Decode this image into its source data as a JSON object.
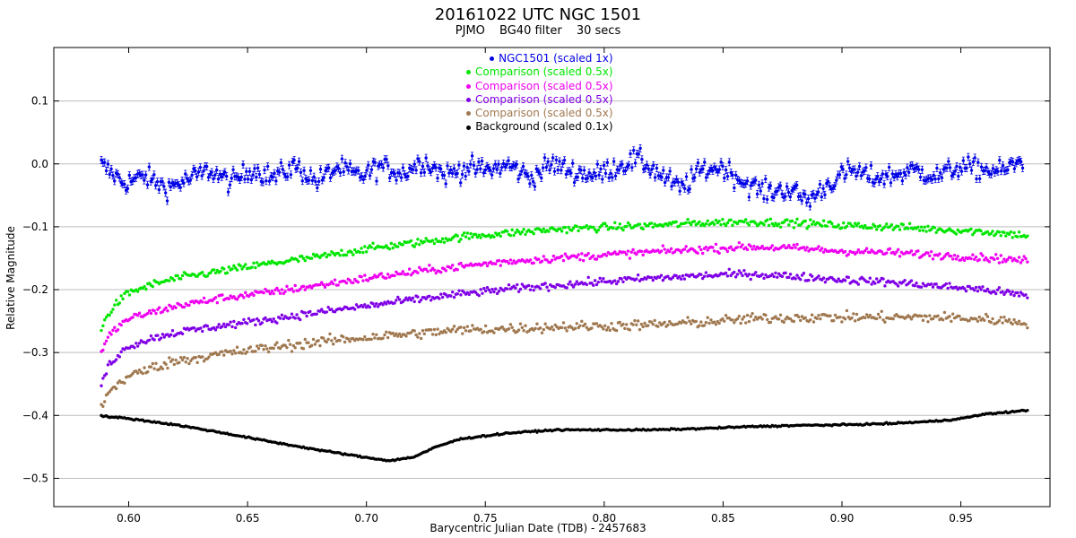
{
  "chart_data": {
    "type": "scatter",
    "title": "20161022 UTC   NGC 1501",
    "subtitle_parts": [
      "PJMO",
      "BG40 filter",
      "30 secs"
    ],
    "xlabel": "Barycentric Julian Date (TDB) - 2457683",
    "ylabel": "Relative Magnitude",
    "xlim": [
      0.5685,
      0.9875
    ],
    "ylim": [
      -0.545,
      0.185
    ],
    "x_ticks": [
      0.6,
      0.65,
      0.7,
      0.75,
      0.8,
      0.85,
      0.9,
      0.95
    ],
    "x_tick_labels": [
      "0.60",
      "0.65",
      "0.70",
      "0.75",
      "0.80",
      "0.85",
      "0.90",
      "0.95"
    ],
    "y_ticks": [
      0.1,
      0.0,
      -0.1,
      -0.2,
      -0.3,
      -0.4,
      -0.5
    ],
    "y_tick_labels": [
      "0.1",
      "0.0",
      "−0.1",
      "−0.2",
      "−0.3",
      "−0.4",
      "−0.5"
    ],
    "grid": true,
    "legend_position": "top-center",
    "series": [
      {
        "name": "NGC1501",
        "label": "NGC1501 (scaled 1x)",
        "color": "#0000e6",
        "errorbars": true,
        "x": [
          0.5885,
          0.598,
          0.607,
          0.616,
          0.625,
          0.634,
          0.643,
          0.652,
          0.661,
          0.67,
          0.679,
          0.688,
          0.697,
          0.706,
          0.715,
          0.724,
          0.733,
          0.742,
          0.751,
          0.76,
          0.769,
          0.778,
          0.787,
          0.796,
          0.805,
          0.814,
          0.823,
          0.832,
          0.841,
          0.85,
          0.859,
          0.868,
          0.877,
          0.886,
          0.895,
          0.904,
          0.913,
          0.922,
          0.931,
          0.94,
          0.949,
          0.958,
          0.967,
          0.976
        ],
        "y": [
          -0.002,
          -0.03,
          -0.02,
          -0.038,
          -0.025,
          -0.01,
          -0.03,
          -0.008,
          -0.022,
          -0.003,
          -0.028,
          -0.006,
          -0.02,
          -0.004,
          -0.015,
          0.005,
          -0.018,
          -0.006,
          -0.01,
          -0.002,
          -0.022,
          0.0,
          -0.012,
          -0.018,
          -0.005,
          0.008,
          -0.015,
          -0.04,
          -0.01,
          -0.005,
          -0.03,
          -0.045,
          -0.04,
          -0.058,
          -0.03,
          -0.01,
          -0.022,
          -0.018,
          -0.01,
          -0.02,
          -0.005,
          -0.008,
          -0.012,
          0.005
        ]
      },
      {
        "name": "Comparison 1",
        "label": "Comparison  (scaled 0.5x)",
        "color": "#00e600",
        "x": [
          0.5885,
          0.592,
          0.596,
          0.6,
          0.61,
          0.62,
          0.64,
          0.66,
          0.68,
          0.7,
          0.72,
          0.74,
          0.76,
          0.78,
          0.8,
          0.82,
          0.84,
          0.86,
          0.88,
          0.9,
          0.92,
          0.94,
          0.96,
          0.978
        ],
        "y": [
          -0.262,
          -0.235,
          -0.218,
          -0.205,
          -0.192,
          -0.182,
          -0.17,
          -0.158,
          -0.148,
          -0.135,
          -0.126,
          -0.116,
          -0.11,
          -0.104,
          -0.101,
          -0.098,
          -0.094,
          -0.092,
          -0.094,
          -0.098,
          -0.1,
          -0.104,
          -0.108,
          -0.114
        ]
      },
      {
        "name": "Comparison 2",
        "label": "Comparison  (scaled 0.5x)",
        "color": "#f000f0",
        "x": [
          0.5885,
          0.592,
          0.596,
          0.6,
          0.61,
          0.62,
          0.64,
          0.66,
          0.68,
          0.7,
          0.72,
          0.74,
          0.76,
          0.78,
          0.8,
          0.82,
          0.84,
          0.86,
          0.88,
          0.9,
          0.92,
          0.94,
          0.96,
          0.978
        ],
        "y": [
          -0.3,
          -0.272,
          -0.258,
          -0.246,
          -0.236,
          -0.226,
          -0.213,
          -0.204,
          -0.193,
          -0.182,
          -0.172,
          -0.163,
          -0.155,
          -0.15,
          -0.145,
          -0.14,
          -0.136,
          -0.132,
          -0.134,
          -0.139,
          -0.141,
          -0.145,
          -0.149,
          -0.154
        ]
      },
      {
        "name": "Comparison 3",
        "label": "Comparison  (scaled 0.5x)",
        "color": "#7f00e6",
        "x": [
          0.5885,
          0.592,
          0.596,
          0.6,
          0.61,
          0.62,
          0.64,
          0.66,
          0.68,
          0.7,
          0.72,
          0.74,
          0.76,
          0.78,
          0.8,
          0.82,
          0.84,
          0.86,
          0.88,
          0.9,
          0.92,
          0.94,
          0.96,
          0.978
        ],
        "y": [
          -0.35,
          -0.318,
          -0.302,
          -0.29,
          -0.277,
          -0.268,
          -0.257,
          -0.247,
          -0.236,
          -0.226,
          -0.216,
          -0.207,
          -0.199,
          -0.193,
          -0.187,
          -0.182,
          -0.178,
          -0.175,
          -0.179,
          -0.184,
          -0.188,
          -0.194,
          -0.2,
          -0.21
        ]
      },
      {
        "name": "Comparison 4",
        "label": "Comparison  (scaled 0.5x)",
        "color": "#a07850",
        "x": [
          0.5885,
          0.592,
          0.596,
          0.6,
          0.61,
          0.62,
          0.64,
          0.66,
          0.68,
          0.7,
          0.72,
          0.74,
          0.76,
          0.78,
          0.8,
          0.82,
          0.84,
          0.86,
          0.88,
          0.9,
          0.92,
          0.94,
          0.96,
          0.978
        ],
        "y": [
          -0.385,
          -0.362,
          -0.348,
          -0.338,
          -0.324,
          -0.313,
          -0.302,
          -0.292,
          -0.283,
          -0.276,
          -0.27,
          -0.264,
          -0.262,
          -0.259,
          -0.258,
          -0.256,
          -0.252,
          -0.247,
          -0.244,
          -0.244,
          -0.244,
          -0.244,
          -0.247,
          -0.252
        ]
      },
      {
        "name": "Background",
        "label": "Background  (scaled 0.1x)",
        "color": "#000000",
        "x": [
          0.5885,
          0.6,
          0.62,
          0.64,
          0.66,
          0.68,
          0.7,
          0.71,
          0.72,
          0.73,
          0.74,
          0.76,
          0.78,
          0.8,
          0.82,
          0.84,
          0.86,
          0.88,
          0.9,
          0.92,
          0.94,
          0.95,
          0.96,
          0.978
        ],
        "y": [
          -0.401,
          -0.405,
          -0.415,
          -0.428,
          -0.442,
          -0.455,
          -0.467,
          -0.472,
          -0.466,
          -0.449,
          -0.437,
          -0.428,
          -0.423,
          -0.423,
          -0.423,
          -0.421,
          -0.418,
          -0.416,
          -0.415,
          -0.413,
          -0.409,
          -0.405,
          -0.398,
          -0.392
        ]
      }
    ]
  }
}
